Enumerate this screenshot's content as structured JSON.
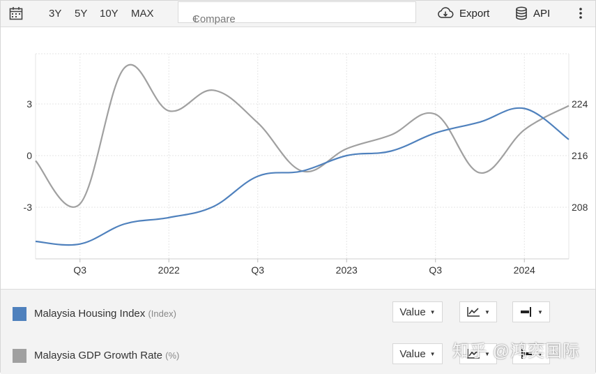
{
  "toolbar": {
    "ranges": [
      "3Y",
      "5Y",
      "10Y",
      "MAX"
    ],
    "compare_placeholder": "Compare",
    "compare_plus": "+",
    "export_label": "Export",
    "api_label": "API"
  },
  "chart_data": {
    "type": "line",
    "x_tick_labels": [
      "Q3",
      "2022",
      "Q3",
      "2023",
      "Q3",
      "2024"
    ],
    "y_left_ticks": [
      "3",
      "0",
      "-3"
    ],
    "y_right_ticks": [
      "224",
      "216",
      "208"
    ],
    "grid": true,
    "series": [
      {
        "name": "Malaysia Housing Index",
        "axis": "right",
        "color": "#4f81bd",
        "x": [
          "2021 Q2",
          "2021 Q3",
          "2021 Q4",
          "2022 Q1",
          "2022 Q2",
          "2022 Q3",
          "2022 Q4",
          "2023 Q1",
          "2023 Q2",
          "2023 Q3",
          "2023 Q4",
          "2024 Q1",
          "2024 Q2"
        ],
        "values": [
          202.7,
          202.3,
          205.4,
          206.4,
          208.1,
          212.8,
          213.6,
          216.0,
          216.7,
          219.5,
          221.2,
          223.3,
          218.5
        ]
      },
      {
        "name": "Malaysia GDP Growth Rate",
        "axis": "left",
        "color": "#a0a0a0",
        "x": [
          "2021 Q2",
          "2021 Q3",
          "2021 Q4",
          "2022 Q1",
          "2022 Q2",
          "2022 Q3",
          "2022 Q4",
          "2023 Q1",
          "2023 Q2",
          "2023 Q3",
          "2023 Q4",
          "2024 Q1",
          "2024 Q2"
        ],
        "values": [
          -0.3,
          -2.8,
          5.1,
          2.6,
          3.8,
          1.9,
          -0.9,
          0.4,
          1.2,
          2.4,
          -1.0,
          1.5,
          2.9
        ]
      }
    ]
  },
  "legend": [
    {
      "name": "Malaysia Housing Index",
      "unit": "(Index)",
      "color": "#4f81bd",
      "select_label": "Value"
    },
    {
      "name": "Malaysia GDP Growth Rate",
      "unit": "(%)",
      "color": "#a0a0a0",
      "select_label": "Value"
    }
  ],
  "watermark": "知乎 @鸿奕国际"
}
